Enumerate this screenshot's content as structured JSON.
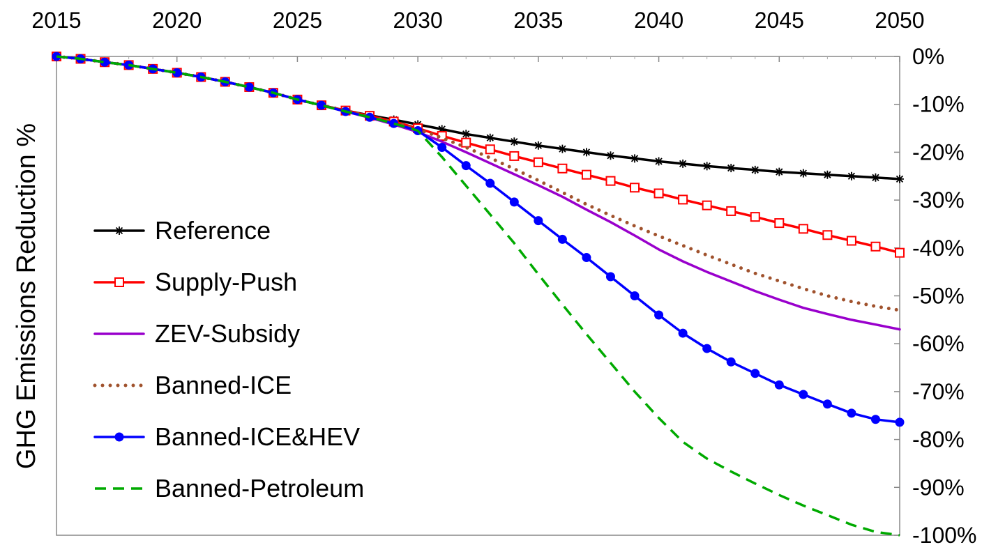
{
  "chart_data": {
    "type": "line",
    "ylabel": "GHG Emissions Reduction %",
    "xlim": [
      2015,
      2050
    ],
    "ylim": [
      -100,
      0
    ],
    "x_ticks": [
      2015,
      2020,
      2025,
      2030,
      2035,
      2040,
      2045,
      2050
    ],
    "y_ticks": [
      0,
      -10,
      -20,
      -30,
      -40,
      -50,
      -60,
      -70,
      -80,
      -90,
      -100
    ],
    "y_tick_labels": [
      "0%",
      "-10%",
      "-20%",
      "-30%",
      "-40%",
      "-50%",
      "-60%",
      "-70%",
      "-80%",
      "-90%",
      "-100%"
    ],
    "x_axis_position": "top",
    "y_axis_position": "right",
    "grid": false,
    "legend_position": "left",
    "x": [
      2015,
      2016,
      2017,
      2018,
      2019,
      2020,
      2021,
      2022,
      2023,
      2024,
      2025,
      2026,
      2027,
      2028,
      2029,
      2030,
      2031,
      2032,
      2033,
      2034,
      2035,
      2036,
      2037,
      2038,
      2039,
      2040,
      2041,
      2042,
      2043,
      2044,
      2045,
      2046,
      2047,
      2048,
      2049,
      2050
    ],
    "series": [
      {
        "name": "Reference",
        "color": "#000000",
        "marker": "asterisk",
        "dash": "solid",
        "values": [
          0,
          -0.5,
          -1.2,
          -1.8,
          -2.6,
          -3.4,
          -4.3,
          -5.3,
          -6.4,
          -7.6,
          -9.0,
          -10.2,
          -11.3,
          -12.3,
          -13.2,
          -14.2,
          -15.2,
          -16.2,
          -17.0,
          -17.8,
          -18.6,
          -19.3,
          -20.0,
          -20.7,
          -21.3,
          -21.9,
          -22.4,
          -22.9,
          -23.3,
          -23.7,
          -24.1,
          -24.4,
          -24.7,
          -25.0,
          -25.3,
          -25.6
        ]
      },
      {
        "name": "Supply-Push",
        "color": "#ff0000",
        "marker": "open-square",
        "dash": "solid",
        "values": [
          0,
          -0.5,
          -1.2,
          -1.8,
          -2.6,
          -3.4,
          -4.3,
          -5.3,
          -6.4,
          -7.6,
          -9.0,
          -10.2,
          -11.3,
          -12.4,
          -13.6,
          -15.0,
          -16.6,
          -18.0,
          -19.4,
          -20.8,
          -22.1,
          -23.4,
          -24.7,
          -26.0,
          -27.4,
          -28.6,
          -29.9,
          -31.1,
          -32.3,
          -33.5,
          -34.8,
          -36.0,
          -37.3,
          -38.5,
          -39.7,
          -41.0
        ]
      },
      {
        "name": "ZEV-Subsidy",
        "color": "#9900cc",
        "marker": "none",
        "dash": "solid",
        "values": [
          0,
          -0.5,
          -1.2,
          -1.8,
          -2.6,
          -3.4,
          -4.3,
          -5.3,
          -6.4,
          -7.6,
          -9.0,
          -10.2,
          -11.5,
          -12.8,
          -14.2,
          -15.8,
          -17.8,
          -20.0,
          -22.3,
          -24.6,
          -26.9,
          -29.3,
          -32.0,
          -34.6,
          -37.4,
          -40.3,
          -42.8,
          -45.0,
          -47.0,
          -49.0,
          -50.8,
          -52.5,
          -53.8,
          -55.0,
          -56.0,
          -57.0
        ]
      },
      {
        "name": "Banned-ICE",
        "color": "#a0522d",
        "marker": "none",
        "dash": "dotted",
        "values": [
          0,
          -0.5,
          -1.2,
          -1.8,
          -2.6,
          -3.4,
          -4.3,
          -5.3,
          -6.4,
          -7.6,
          -9.0,
          -10.2,
          -11.3,
          -12.5,
          -13.8,
          -15.2,
          -17.0,
          -19.0,
          -21.2,
          -23.5,
          -25.9,
          -28.4,
          -30.9,
          -33.2,
          -35.4,
          -37.5,
          -39.5,
          -41.5,
          -43.4,
          -45.3,
          -46.9,
          -48.5,
          -50.0,
          -51.2,
          -52.2,
          -53.0
        ]
      },
      {
        "name": "Banned-ICE&HEV",
        "color": "#0000ff",
        "marker": "filled-circle",
        "dash": "solid",
        "values": [
          0,
          -0.5,
          -1.2,
          -1.8,
          -2.6,
          -3.4,
          -4.3,
          -5.3,
          -6.4,
          -7.6,
          -9.0,
          -10.2,
          -11.5,
          -12.7,
          -14.0,
          -15.5,
          -19.0,
          -22.8,
          -26.5,
          -30.4,
          -34.3,
          -38.2,
          -42.0,
          -46.0,
          -50.0,
          -54.0,
          -57.8,
          -61.0,
          -63.8,
          -66.2,
          -68.6,
          -70.6,
          -72.6,
          -74.5,
          -75.8,
          -76.4
        ]
      },
      {
        "name": "Banned-Petroleum",
        "color": "#00aa00",
        "marker": "none",
        "dash": "dashed",
        "values": [
          0,
          -0.5,
          -1.2,
          -1.8,
          -2.6,
          -3.4,
          -4.3,
          -5.3,
          -6.4,
          -7.6,
          -9.0,
          -10.2,
          -11.5,
          -12.7,
          -14.0,
          -15.5,
          -21.0,
          -27.0,
          -33.0,
          -39.0,
          -45.5,
          -51.8,
          -58.0,
          -64.0,
          -70.0,
          -75.5,
          -80.5,
          -84.0,
          -86.7,
          -89.2,
          -91.6,
          -93.8,
          -95.8,
          -97.8,
          -99.3,
          -100.0
        ]
      }
    ]
  }
}
